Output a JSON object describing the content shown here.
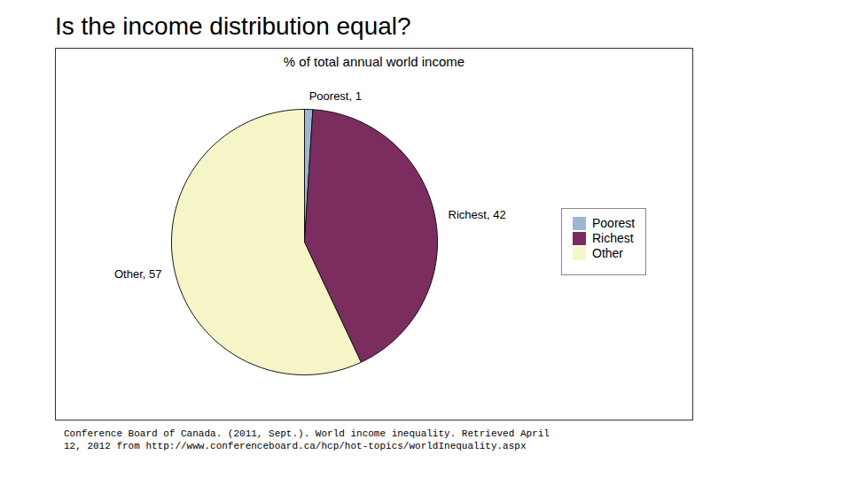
{
  "chart_data": {
    "type": "pie",
    "title": "Is the income distribution equal?",
    "subtitle": "% of total annual world income",
    "categories": [
      "Poorest",
      "Richest",
      "Other"
    ],
    "values": [
      1,
      42,
      57
    ],
    "colors": [
      "#9eb6d4",
      "#7b2d60",
      "#f5f5c8"
    ],
    "data_labels": true,
    "value_labels": [
      "Poorest, 1",
      "Richest, 42",
      "Other, 57"
    ],
    "legend": "right",
    "annotations": [
      "Conference Board of Canada. (2011, Sept.). World income inequality. Retrieved April",
      "12, 2012 from http://www.conferenceboard.ca/hcp/hot-topics/worldInequality.aspx"
    ]
  }
}
